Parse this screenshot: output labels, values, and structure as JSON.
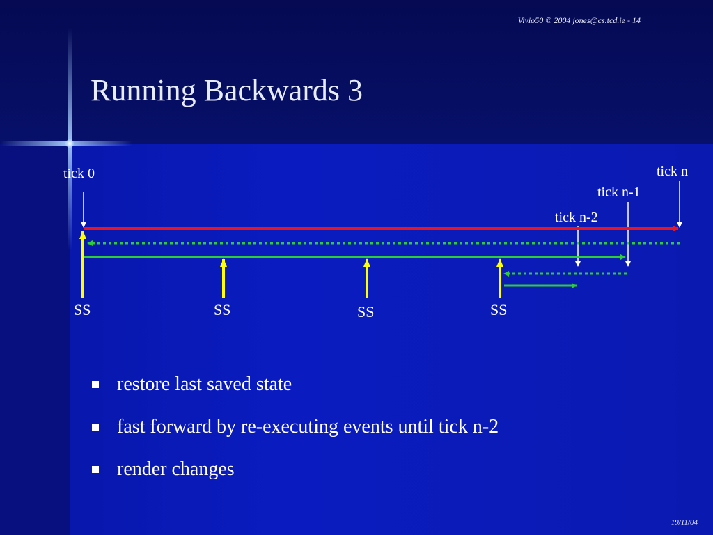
{
  "header": {
    "credit": "Vivio50 © 2004 jones@cs.tcd.ie - 14"
  },
  "title": "Running Backwards 3",
  "diagram": {
    "labels": {
      "tick0": "tick 0",
      "tickN": "tick n",
      "tickN1": "tick n-1",
      "tickN2": "tick n-2"
    },
    "snapshots": [
      "SS",
      "SS",
      "SS",
      "SS"
    ],
    "colors": {
      "timeline": "#e8141e",
      "replay": "#2ecc3c",
      "snapshot": "#ffff00",
      "pointer": "#ffffff"
    }
  },
  "bullets": [
    "restore last saved state",
    "fast forward by re-executing events until tick n-2",
    "render changes"
  ],
  "footer": {
    "date": "19/11/04"
  }
}
